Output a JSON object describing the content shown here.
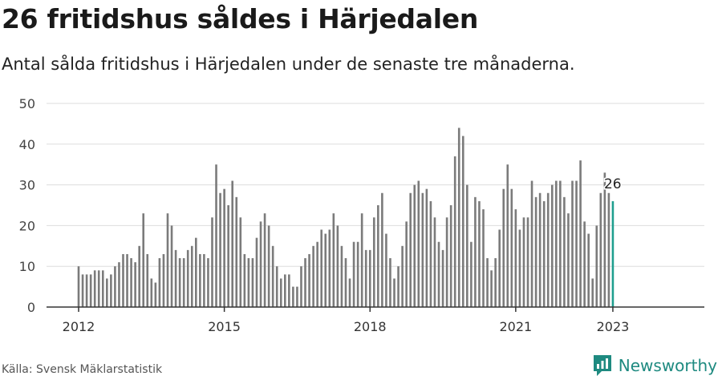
{
  "header": {
    "title": "26 fritidshus såldes i Härjedalen",
    "subtitle": "Antal sålda fritidshus i Härjedalen under de senaste tre månaderna."
  },
  "footer": {
    "source": "Källa: Svensk Mäklarstatistik",
    "brand": "Newsworthy"
  },
  "colors": {
    "bar": "#7b7b7b",
    "highlight": "#1f9e8e",
    "grid": "#dddddd",
    "axis": "#333333",
    "brand": "#1e8a80"
  },
  "chart_data": {
    "type": "bar",
    "start": "2012-01",
    "frequency": "monthly",
    "x_ticks": [
      "2012",
      "2015",
      "2018",
      "2021",
      "2023"
    ],
    "ylim": [
      0,
      50
    ],
    "y_ticks": [
      0,
      10,
      20,
      30,
      40,
      50
    ],
    "grid": true,
    "highlight_label": "26",
    "series": [
      {
        "values": [
          10,
          8,
          8,
          8,
          9,
          9,
          9,
          7,
          8,
          10,
          11,
          13,
          13,
          12,
          11,
          15,
          23,
          13,
          7,
          6,
          12,
          13,
          23,
          20,
          14,
          12,
          12,
          14,
          15,
          17,
          13,
          13,
          12,
          22,
          35,
          28,
          29,
          25,
          31,
          27,
          22,
          13,
          12,
          12,
          17,
          21,
          23,
          20,
          15,
          10,
          7,
          8,
          8,
          5,
          5,
          10,
          12,
          13,
          15,
          16,
          19,
          18,
          19,
          23,
          20,
          15,
          12,
          7,
          16,
          16,
          23,
          14,
          14,
          22,
          25,
          28,
          18,
          12,
          7,
          10,
          15,
          21,
          28,
          30,
          31,
          28,
          29,
          26,
          22,
          16,
          14,
          22,
          25,
          37,
          44,
          42,
          30,
          16,
          27,
          26,
          24,
          12,
          9,
          12,
          19,
          29,
          35,
          29,
          24,
          19,
          22,
          22,
          31,
          27,
          28,
          26,
          28,
          30,
          31,
          31,
          27,
          23,
          31,
          31,
          36,
          21,
          18,
          7,
          20,
          28,
          33,
          28,
          26
        ]
      }
    ]
  }
}
